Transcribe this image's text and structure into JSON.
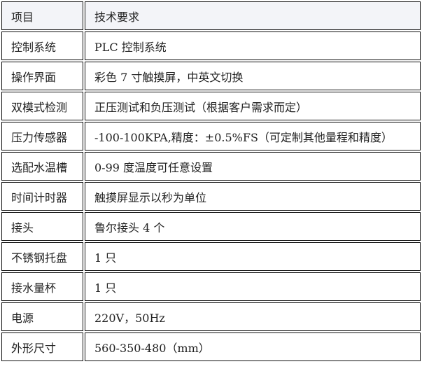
{
  "table": {
    "header": [
      "项目",
      "技术要求"
    ],
    "rows": [
      [
        "控制系统",
        "PLC 控制系统"
      ],
      [
        "操作界面",
        "彩色 7 寸触摸屏，中英文切换"
      ],
      [
        "双模式检测",
        "正压测试和负压测试（根据客户需求而定）"
      ],
      [
        "压力传感器",
        "-100-100KPA,精度：±0.5%FS（可定制其他量程和精度）"
      ],
      [
        "选配水温槽",
        "0-99 度温度可任意设置"
      ],
      [
        "时间计时器",
        "触摸屏显示以秒为单位"
      ],
      [
        "接头",
        "鲁尔接头 4 个"
      ],
      [
        "不锈钢托盘",
        "1 只"
      ],
      [
        "接水量杯",
        "1 只"
      ],
      [
        "电源",
        "220V，50Hz"
      ],
      [
        "外形尺寸",
        "560-350-480（mm）"
      ]
    ]
  }
}
